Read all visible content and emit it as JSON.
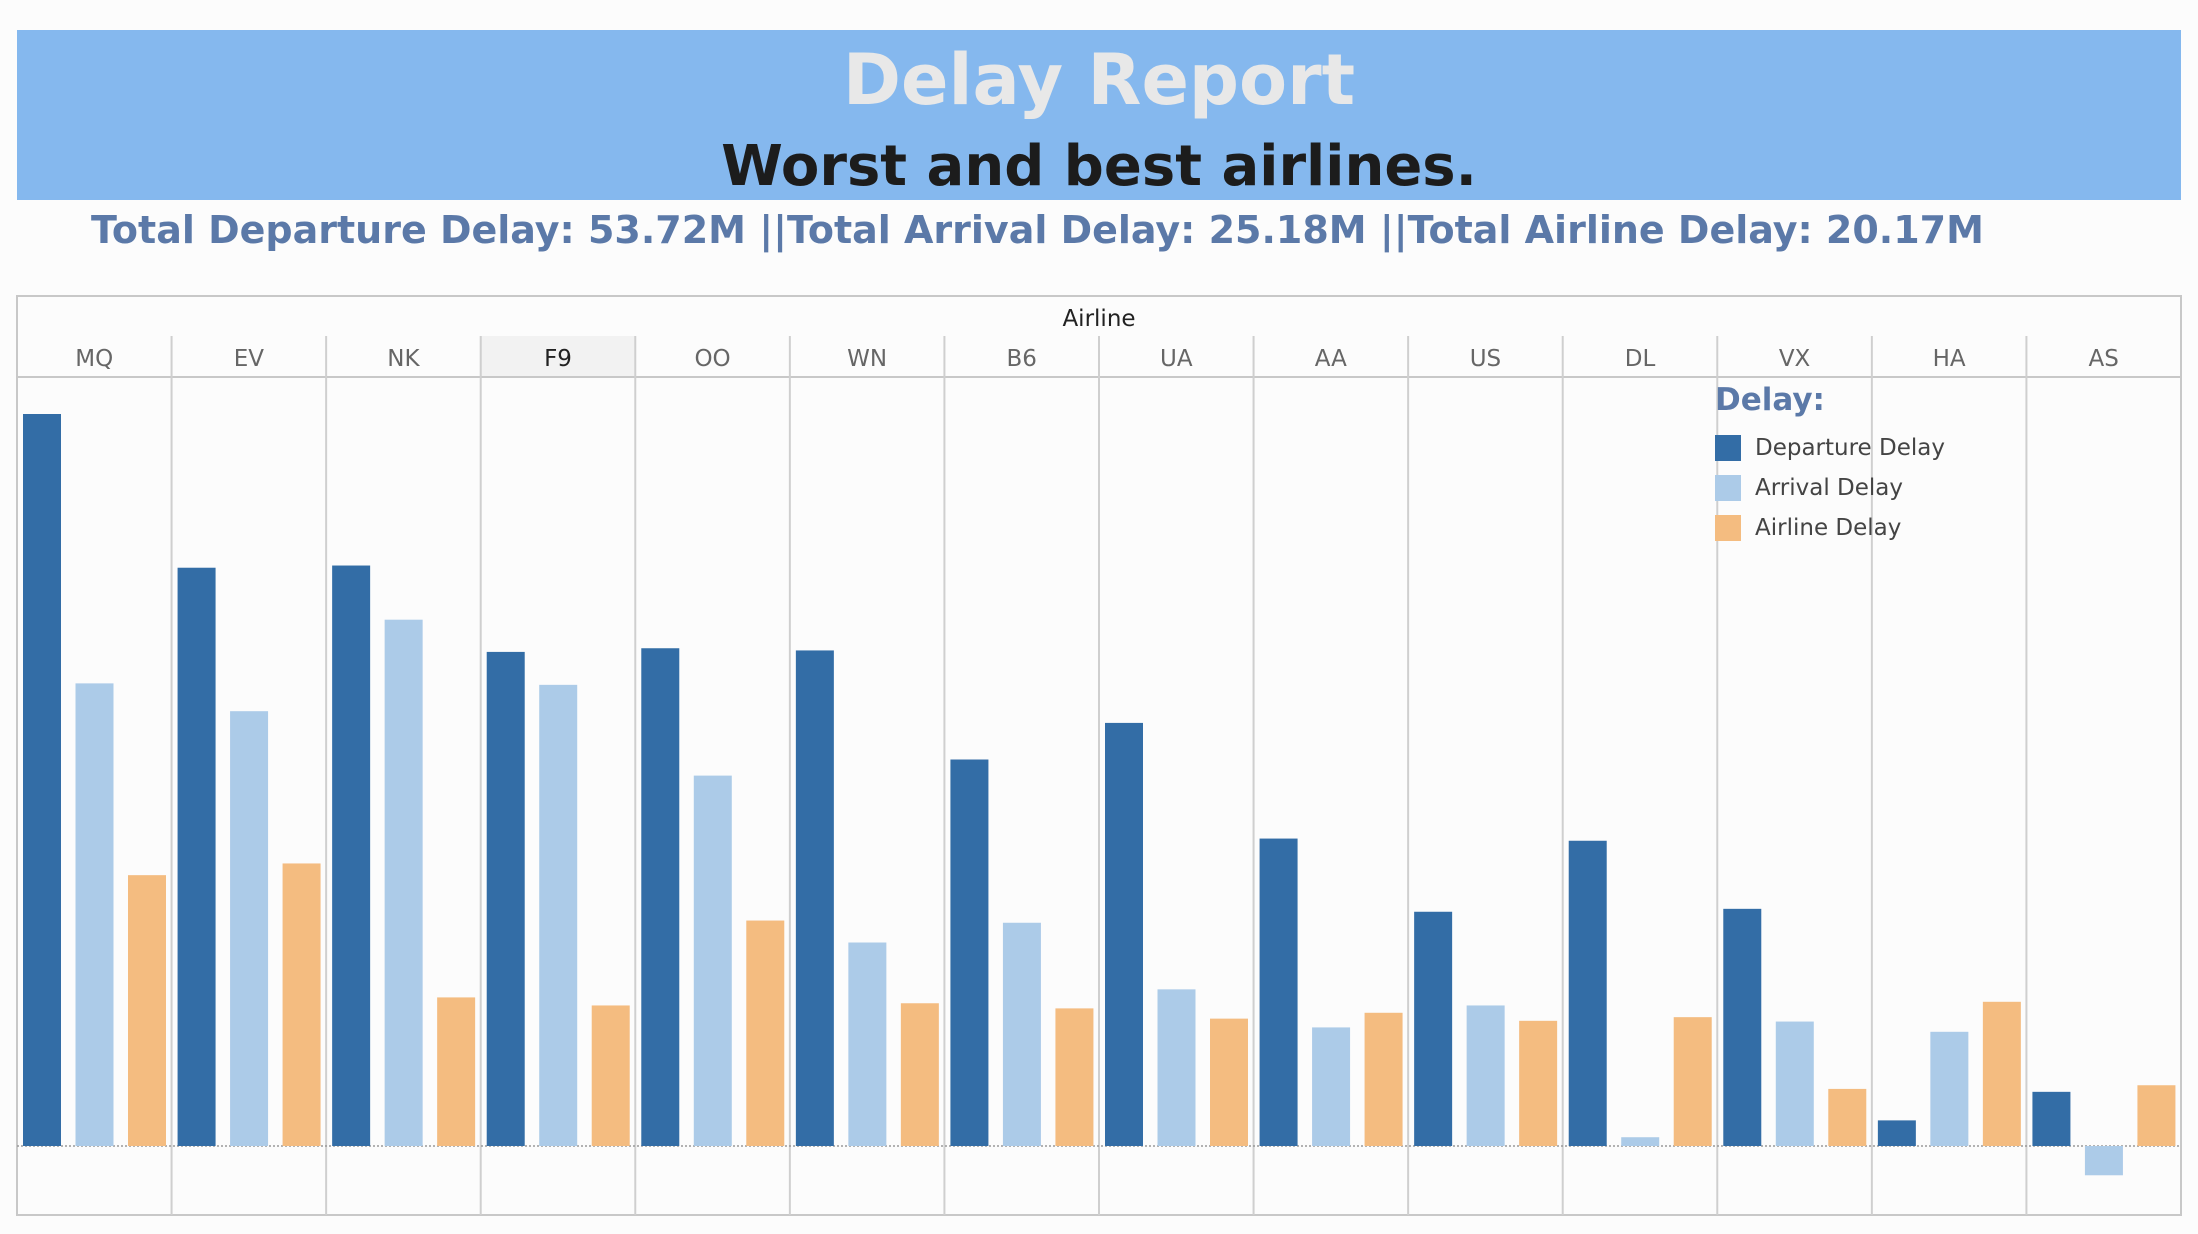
{
  "header": {
    "title": "Delay Report",
    "subtitle": "Worst and best airlines.",
    "totals": "Total Departure Delay: 53.72M ||Total Arrival Delay: 25.18M ||Total Airline Delay: 20.17M"
  },
  "chart_data": {
    "type": "bar",
    "xlabel": "Airline",
    "ylabel": "",
    "categories": [
      "MQ",
      "EV",
      "NK",
      "F9",
      "OO",
      "WN",
      "B6",
      "UA",
      "AA",
      "US",
      "DL",
      "VX",
      "HA",
      "AS"
    ],
    "highlighted_category": "F9",
    "legend": {
      "title": "Delay:",
      "placement": "top-right"
    },
    "series": [
      {
        "name": "Departure Delay",
        "color": "#336da6",
        "values": [
          100,
          79,
          79.3,
          67.5,
          68,
          67.7,
          52.8,
          57.8,
          42,
          32,
          41.7,
          32.4,
          3.5,
          7.4
        ]
      },
      {
        "name": "Arrival Delay",
        "color": "#accbe8",
        "values": [
          63.2,
          59.4,
          71.9,
          63,
          50.6,
          27.8,
          30.5,
          21.4,
          16.2,
          19.2,
          1.2,
          17,
          15.6,
          -4
        ]
      },
      {
        "name": "Airline Delay",
        "color": "#f4bc80",
        "values": [
          37,
          38.6,
          20.3,
          19.2,
          30.8,
          19.5,
          18.8,
          17.4,
          18.2,
          17.1,
          17.6,
          7.8,
          19.7,
          8.3
        ]
      }
    ],
    "ylim": [
      -9.5,
      100
    ],
    "grid": true
  }
}
